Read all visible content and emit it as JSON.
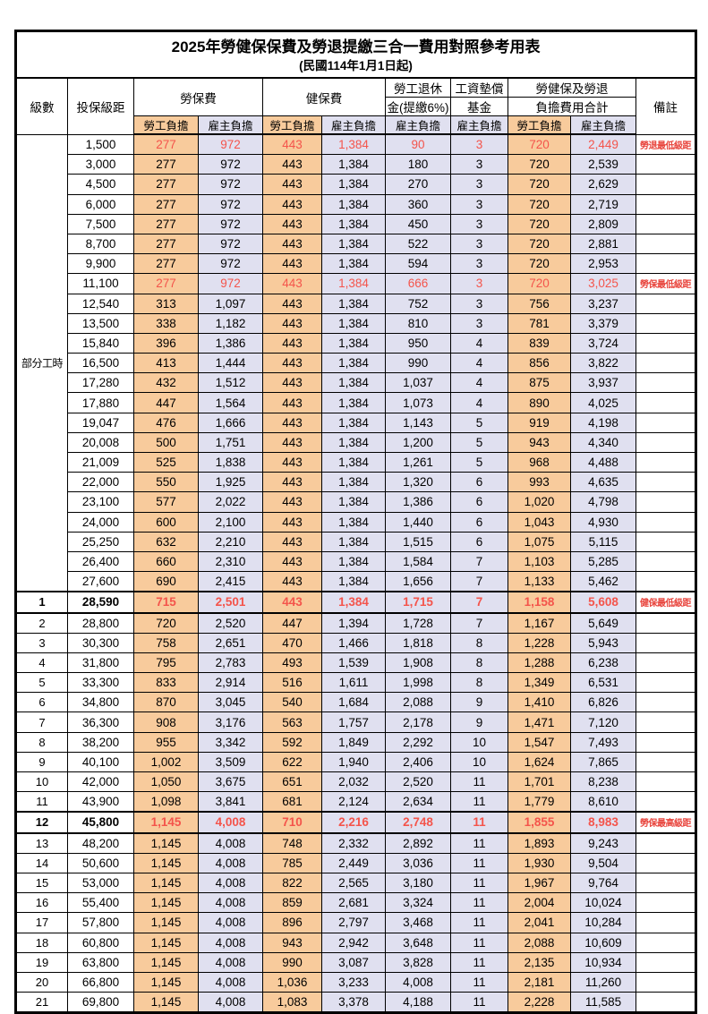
{
  "colors": {
    "employee_bg": "#f8cb9c",
    "employer_bg": "#e0e0f0",
    "highlight_red": "#f4544b",
    "remark_red": "#e8443c",
    "border": "#000000"
  },
  "table": {
    "title": "2025年勞健保保費及勞退提繳三合一費用對照參考用表",
    "subtitle": "(民國114年1月1日起)",
    "headers": {
      "level": "級數",
      "bracket": "投保級距",
      "labor_insurance": "勞保費",
      "health_insurance": "健保費",
      "pension_line1": "勞工退休",
      "pension_line2": "金(提繳6%)",
      "wage_fund_line1": "工資墊償",
      "wage_fund_line2": "基金",
      "total_line1": "勞健保及勞退",
      "total_line2": "負擔費用合計",
      "remark": "備註",
      "employee": "勞工負擔",
      "employer": "雇主負擔"
    },
    "part_time_label": "部分工時",
    "part_time_span": 23,
    "rows": [
      {
        "level": "",
        "bracket": "1,500",
        "values": [
          "277",
          "972",
          "443",
          "1,384",
          "90",
          "3",
          "720",
          "2,449"
        ],
        "remark": "勞退最低級距",
        "red": true,
        "strong": false
      },
      {
        "level": "",
        "bracket": "3,000",
        "values": [
          "277",
          "972",
          "443",
          "1,384",
          "180",
          "3",
          "720",
          "2,539"
        ],
        "remark": "",
        "red": false,
        "strong": false
      },
      {
        "level": "",
        "bracket": "4,500",
        "values": [
          "277",
          "972",
          "443",
          "1,384",
          "270",
          "3",
          "720",
          "2,629"
        ],
        "remark": "",
        "red": false,
        "strong": false
      },
      {
        "level": "",
        "bracket": "6,000",
        "values": [
          "277",
          "972",
          "443",
          "1,384",
          "360",
          "3",
          "720",
          "2,719"
        ],
        "remark": "",
        "red": false,
        "strong": false
      },
      {
        "level": "",
        "bracket": "7,500",
        "values": [
          "277",
          "972",
          "443",
          "1,384",
          "450",
          "3",
          "720",
          "2,809"
        ],
        "remark": "",
        "red": false,
        "strong": false
      },
      {
        "level": "",
        "bracket": "8,700",
        "values": [
          "277",
          "972",
          "443",
          "1,384",
          "522",
          "3",
          "720",
          "2,881"
        ],
        "remark": "",
        "red": false,
        "strong": false
      },
      {
        "level": "",
        "bracket": "9,900",
        "values": [
          "277",
          "972",
          "443",
          "1,384",
          "594",
          "3",
          "720",
          "2,953"
        ],
        "remark": "",
        "red": false,
        "strong": false
      },
      {
        "level": "",
        "bracket": "11,100",
        "values": [
          "277",
          "972",
          "443",
          "1,384",
          "666",
          "3",
          "720",
          "3,025"
        ],
        "remark": "勞保最低級距",
        "red": true,
        "strong": false
      },
      {
        "level": "",
        "bracket": "12,540",
        "values": [
          "313",
          "1,097",
          "443",
          "1,384",
          "752",
          "3",
          "756",
          "3,237"
        ],
        "remark": "",
        "red": false,
        "strong": false
      },
      {
        "level": "",
        "bracket": "13,500",
        "values": [
          "338",
          "1,182",
          "443",
          "1,384",
          "810",
          "3",
          "781",
          "3,379"
        ],
        "remark": "",
        "red": false,
        "strong": false
      },
      {
        "level": "",
        "bracket": "15,840",
        "values": [
          "396",
          "1,386",
          "443",
          "1,384",
          "950",
          "4",
          "839",
          "3,724"
        ],
        "remark": "",
        "red": false,
        "strong": false
      },
      {
        "level": "",
        "bracket": "16,500",
        "values": [
          "413",
          "1,444",
          "443",
          "1,384",
          "990",
          "4",
          "856",
          "3,822"
        ],
        "remark": "",
        "red": false,
        "strong": false
      },
      {
        "level": "",
        "bracket": "17,280",
        "values": [
          "432",
          "1,512",
          "443",
          "1,384",
          "1,037",
          "4",
          "875",
          "3,937"
        ],
        "remark": "",
        "red": false,
        "strong": false
      },
      {
        "level": "",
        "bracket": "17,880",
        "values": [
          "447",
          "1,564",
          "443",
          "1,384",
          "1,073",
          "4",
          "890",
          "4,025"
        ],
        "remark": "",
        "red": false,
        "strong": false
      },
      {
        "level": "",
        "bracket": "19,047",
        "values": [
          "476",
          "1,666",
          "443",
          "1,384",
          "1,143",
          "5",
          "919",
          "4,198"
        ],
        "remark": "",
        "red": false,
        "strong": false
      },
      {
        "level": "",
        "bracket": "20,008",
        "values": [
          "500",
          "1,751",
          "443",
          "1,384",
          "1,200",
          "5",
          "943",
          "4,340"
        ],
        "remark": "",
        "red": false,
        "strong": false
      },
      {
        "level": "",
        "bracket": "21,009",
        "values": [
          "525",
          "1,838",
          "443",
          "1,384",
          "1,261",
          "5",
          "968",
          "4,488"
        ],
        "remark": "",
        "red": false,
        "strong": false
      },
      {
        "level": "",
        "bracket": "22,000",
        "values": [
          "550",
          "1,925",
          "443",
          "1,384",
          "1,320",
          "6",
          "993",
          "4,635"
        ],
        "remark": "",
        "red": false,
        "strong": false
      },
      {
        "level": "",
        "bracket": "23,100",
        "values": [
          "577",
          "2,022",
          "443",
          "1,384",
          "1,386",
          "6",
          "1,020",
          "4,798"
        ],
        "remark": "",
        "red": false,
        "strong": false
      },
      {
        "level": "",
        "bracket": "24,000",
        "values": [
          "600",
          "2,100",
          "443",
          "1,384",
          "1,440",
          "6",
          "1,043",
          "4,930"
        ],
        "remark": "",
        "red": false,
        "strong": false
      },
      {
        "level": "",
        "bracket": "25,250",
        "values": [
          "632",
          "2,210",
          "443",
          "1,384",
          "1,515",
          "6",
          "1,075",
          "5,115"
        ],
        "remark": "",
        "red": false,
        "strong": false
      },
      {
        "level": "",
        "bracket": "26,400",
        "values": [
          "660",
          "2,310",
          "443",
          "1,384",
          "1,584",
          "7",
          "1,103",
          "5,285"
        ],
        "remark": "",
        "red": false,
        "strong": false
      },
      {
        "level": "",
        "bracket": "27,600",
        "values": [
          "690",
          "2,415",
          "443",
          "1,384",
          "1,656",
          "7",
          "1,133",
          "5,462"
        ],
        "remark": "",
        "red": false,
        "strong": false
      },
      {
        "level": "1",
        "bracket": "28,590",
        "values": [
          "715",
          "2,501",
          "443",
          "1,384",
          "1,715",
          "7",
          "1,158",
          "5,608"
        ],
        "remark": "健保最低級距",
        "red": true,
        "strong": true
      },
      {
        "level": "2",
        "bracket": "28,800",
        "values": [
          "720",
          "2,520",
          "447",
          "1,394",
          "1,728",
          "7",
          "1,167",
          "5,649"
        ],
        "remark": "",
        "red": false,
        "strong": false
      },
      {
        "level": "3",
        "bracket": "30,300",
        "values": [
          "758",
          "2,651",
          "470",
          "1,466",
          "1,818",
          "8",
          "1,228",
          "5,943"
        ],
        "remark": "",
        "red": false,
        "strong": false
      },
      {
        "level": "4",
        "bracket": "31,800",
        "values": [
          "795",
          "2,783",
          "493",
          "1,539",
          "1,908",
          "8",
          "1,288",
          "6,238"
        ],
        "remark": "",
        "red": false,
        "strong": false
      },
      {
        "level": "5",
        "bracket": "33,300",
        "values": [
          "833",
          "2,914",
          "516",
          "1,611",
          "1,998",
          "8",
          "1,349",
          "6,531"
        ],
        "remark": "",
        "red": false,
        "strong": false
      },
      {
        "level": "6",
        "bracket": "34,800",
        "values": [
          "870",
          "3,045",
          "540",
          "1,684",
          "2,088",
          "9",
          "1,410",
          "6,826"
        ],
        "remark": "",
        "red": false,
        "strong": false
      },
      {
        "level": "7",
        "bracket": "36,300",
        "values": [
          "908",
          "3,176",
          "563",
          "1,757",
          "2,178",
          "9",
          "1,471",
          "7,120"
        ],
        "remark": "",
        "red": false,
        "strong": false
      },
      {
        "level": "8",
        "bracket": "38,200",
        "values": [
          "955",
          "3,342",
          "592",
          "1,849",
          "2,292",
          "10",
          "1,547",
          "7,493"
        ],
        "remark": "",
        "red": false,
        "strong": false
      },
      {
        "level": "9",
        "bracket": "40,100",
        "values": [
          "1,002",
          "3,509",
          "622",
          "1,940",
          "2,406",
          "10",
          "1,624",
          "7,865"
        ],
        "remark": "",
        "red": false,
        "strong": false
      },
      {
        "level": "10",
        "bracket": "42,000",
        "values": [
          "1,050",
          "3,675",
          "651",
          "2,032",
          "2,520",
          "11",
          "1,701",
          "8,238"
        ],
        "remark": "",
        "red": false,
        "strong": false
      },
      {
        "level": "11",
        "bracket": "43,900",
        "values": [
          "1,098",
          "3,841",
          "681",
          "2,124",
          "2,634",
          "11",
          "1,779",
          "8,610"
        ],
        "remark": "",
        "red": false,
        "strong": false
      },
      {
        "level": "12",
        "bracket": "45,800",
        "values": [
          "1,145",
          "4,008",
          "710",
          "2,216",
          "2,748",
          "11",
          "1,855",
          "8,983"
        ],
        "remark": "勞保最高級距",
        "red": true,
        "strong": true
      },
      {
        "level": "13",
        "bracket": "48,200",
        "values": [
          "1,145",
          "4,008",
          "748",
          "2,332",
          "2,892",
          "11",
          "1,893",
          "9,243"
        ],
        "remark": "",
        "red": false,
        "strong": false
      },
      {
        "level": "14",
        "bracket": "50,600",
        "values": [
          "1,145",
          "4,008",
          "785",
          "2,449",
          "3,036",
          "11",
          "1,930",
          "9,504"
        ],
        "remark": "",
        "red": false,
        "strong": false
      },
      {
        "level": "15",
        "bracket": "53,000",
        "values": [
          "1,145",
          "4,008",
          "822",
          "2,565",
          "3,180",
          "11",
          "1,967",
          "9,764"
        ],
        "remark": "",
        "red": false,
        "strong": false
      },
      {
        "level": "16",
        "bracket": "55,400",
        "values": [
          "1,145",
          "4,008",
          "859",
          "2,681",
          "3,324",
          "11",
          "2,004",
          "10,024"
        ],
        "remark": "",
        "red": false,
        "strong": false
      },
      {
        "level": "17",
        "bracket": "57,800",
        "values": [
          "1,145",
          "4,008",
          "896",
          "2,797",
          "3,468",
          "11",
          "2,041",
          "10,284"
        ],
        "remark": "",
        "red": false,
        "strong": false
      },
      {
        "level": "18",
        "bracket": "60,800",
        "values": [
          "1,145",
          "4,008",
          "943",
          "2,942",
          "3,648",
          "11",
          "2,088",
          "10,609"
        ],
        "remark": "",
        "red": false,
        "strong": false
      },
      {
        "level": "19",
        "bracket": "63,800",
        "values": [
          "1,145",
          "4,008",
          "990",
          "3,087",
          "3,828",
          "11",
          "2,135",
          "10,934"
        ],
        "remark": "",
        "red": false,
        "strong": false
      },
      {
        "level": "20",
        "bracket": "66,800",
        "values": [
          "1,145",
          "4,008",
          "1,036",
          "3,233",
          "4,008",
          "11",
          "2,181",
          "11,260"
        ],
        "remark": "",
        "red": false,
        "strong": false
      },
      {
        "level": "21",
        "bracket": "69,800",
        "values": [
          "1,145",
          "4,008",
          "1,083",
          "3,378",
          "4,188",
          "11",
          "2,228",
          "11,585"
        ],
        "remark": "",
        "red": false,
        "strong": false
      }
    ]
  }
}
